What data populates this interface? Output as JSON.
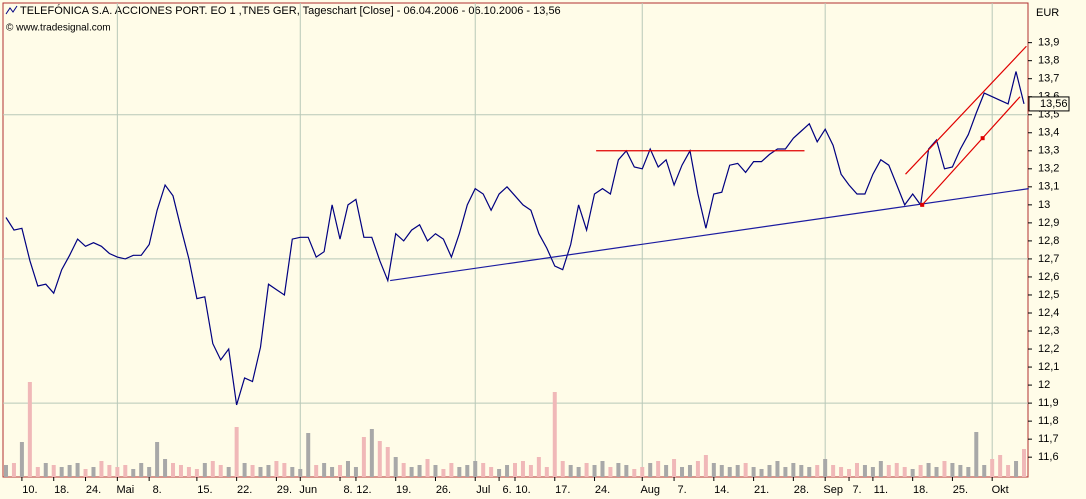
{
  "chart_data": {
    "type": "line",
    "title": "TELEFÓNICA S.A. ACCIONES PORT. EO 1 ,TNE5 GER, Tageschart [Close] - 06.04.2006 - 06.10.2006 - 13,56",
    "source": "© www.tradesignal.com",
    "y_unit": "EUR",
    "categories": [
      null,
      null,
      "10.",
      null,
      null,
      null,
      "18.",
      null,
      null,
      null,
      "24.",
      null,
      null,
      null,
      "Mai",
      null,
      null,
      null,
      "8.",
      null,
      null,
      null,
      null,
      null,
      "15.",
      null,
      null,
      null,
      null,
      "22.",
      null,
      null,
      null,
      null,
      "29.",
      null,
      null,
      "Jun",
      null,
      null,
      null,
      null,
      "8.",
      null,
      "12.",
      null,
      null,
      null,
      null,
      "19.",
      null,
      null,
      null,
      null,
      "26.",
      null,
      null,
      null,
      null,
      "Jul",
      null,
      null,
      "6.",
      null,
      "10.",
      null,
      null,
      null,
      null,
      "17.",
      null,
      null,
      null,
      null,
      "24.",
      null,
      null,
      null,
      null,
      null,
      "Aug",
      null,
      null,
      null,
      "7.",
      null,
      null,
      null,
      null,
      "14.",
      null,
      null,
      null,
      null,
      "21.",
      null,
      null,
      null,
      null,
      "28.",
      null,
      null,
      null,
      "Sep",
      null,
      null,
      "7.",
      null,
      null,
      "11.",
      null,
      null,
      null,
      null,
      "18.",
      null,
      null,
      null,
      null,
      "25.",
      null,
      null,
      null,
      null,
      "Okt",
      null,
      null,
      null,
      null
    ],
    "series": [
      {
        "name": "Close",
        "color": "#000080",
        "values": [
          12.93,
          12.86,
          12.87,
          12.69,
          12.55,
          12.56,
          12.51,
          12.64,
          12.72,
          12.81,
          12.77,
          12.79,
          12.77,
          12.73,
          12.71,
          12.7,
          12.72,
          12.72,
          12.78,
          12.97,
          13.11,
          13.05,
          12.87,
          12.7,
          12.48,
          12.49,
          12.23,
          12.14,
          12.2,
          11.89,
          12.04,
          12.02,
          12.21,
          12.56,
          12.53,
          12.5,
          12.81,
          12.82,
          12.82,
          12.71,
          12.74,
          13.0,
          12.81,
          13.0,
          13.03,
          12.82,
          12.82,
          12.69,
          12.58,
          12.84,
          12.8,
          12.86,
          12.89,
          12.8,
          12.84,
          12.81,
          12.71,
          12.84,
          13.0,
          13.09,
          13.06,
          12.97,
          13.06,
          13.1,
          13.05,
          13.0,
          12.97,
          12.84,
          12.76,
          12.66,
          12.64,
          12.78,
          13.0,
          12.86,
          13.06,
          13.09,
          13.06,
          13.25,
          13.3,
          13.21,
          13.2,
          13.31,
          13.21,
          13.25,
          13.11,
          13.22,
          13.3,
          13.06,
          12.87,
          13.06,
          13.07,
          13.22,
          13.23,
          13.18,
          13.24,
          13.24,
          13.28,
          13.31,
          13.31,
          13.37,
          13.41,
          13.45,
          13.35,
          13.42,
          13.33,
          13.17,
          13.11,
          13.06,
          13.06,
          13.17,
          13.25,
          13.22,
          13.11,
          13.0,
          13.06,
          13.0,
          13.31,
          13.36,
          13.2,
          13.21,
          13.31,
          13.39,
          13.51,
          13.62,
          13.6,
          13.58,
          13.56,
          13.74,
          13.56
        ]
      }
    ],
    "volume": {
      "colors": [
        "#a8a8a8",
        "#f0b8b8"
      ],
      "lim": [
        0,
        100
      ],
      "values": [
        12,
        14,
        35,
        95,
        10,
        14,
        12,
        10,
        12,
        14,
        8,
        10,
        16,
        12,
        10,
        12,
        8,
        14,
        10,
        35,
        18,
        14,
        12,
        10,
        8,
        14,
        16,
        12,
        10,
        50,
        14,
        12,
        10,
        12,
        16,
        14,
        10,
        8,
        44,
        12,
        14,
        10,
        12,
        16,
        10,
        40,
        48,
        36,
        30,
        20,
        14,
        10,
        12,
        18,
        12,
        8,
        14,
        10,
        12,
        16,
        14,
        10,
        8,
        12,
        14,
        16,
        12,
        20,
        10,
        85,
        16,
        12,
        10,
        14,
        12,
        16,
        10,
        14,
        12,
        8,
        10,
        14,
        16,
        12,
        18,
        10,
        12,
        16,
        22,
        14,
        12,
        10,
        12,
        14,
        10,
        8,
        12,
        16,
        10,
        14,
        12,
        10,
        12,
        18,
        12,
        10,
        8,
        14,
        12,
        10,
        16,
        12,
        14,
        10,
        8,
        12,
        14,
        10,
        16,
        14,
        12,
        10,
        45,
        12,
        18,
        22,
        12,
        16,
        28
      ]
    },
    "trendlines": [
      {
        "color": "#1c1ca0",
        "points": [
          [
            48.3,
            12.58
          ],
          [
            128.6,
            13.09
          ]
        ]
      },
      {
        "color": "#e00000",
        "points": [
          [
            74.2,
            13.3
          ],
          [
            100.4,
            13.3
          ]
        ]
      },
      {
        "color": "#e00000",
        "points": [
          [
            113.1,
            13.17
          ],
          [
            128.3,
            13.88
          ]
        ]
      },
      {
        "color": "#e00000",
        "points": [
          [
            115.2,
            13.0
          ],
          [
            127.5,
            13.6
          ]
        ]
      }
    ],
    "markers": [
      {
        "color": "#e00000",
        "point": [
          115.2,
          13.0
        ]
      },
      {
        "color": "#e00000",
        "point": [
          122.8,
          13.37
        ]
      }
    ],
    "ylim": [
      11.49,
      14.12
    ],
    "yticks": [
      {
        "value": 11.6,
        "label": "11,6"
      },
      {
        "value": 11.7,
        "label": "11,7"
      },
      {
        "value": 11.8,
        "label": "11,8"
      },
      {
        "value": 11.9,
        "label": "11,9"
      },
      {
        "value": 12,
        "label": "12"
      },
      {
        "value": 12.1,
        "label": "12,1"
      },
      {
        "value": 12.2,
        "label": "12,2"
      },
      {
        "value": 12.3,
        "label": "12,3"
      },
      {
        "value": 12.4,
        "label": "12,4"
      },
      {
        "value": 12.5,
        "label": "12,5"
      },
      {
        "value": 12.6,
        "label": "12,6"
      },
      {
        "value": 12.7,
        "label": "12,7"
      },
      {
        "value": 12.8,
        "label": "12,8"
      },
      {
        "value": 12.9,
        "label": "12,9"
      },
      {
        "value": 13,
        "label": "13"
      },
      {
        "value": 13.1,
        "label": "13,1"
      },
      {
        "value": 13.2,
        "label": "13,2"
      },
      {
        "value": 13.3,
        "label": "13,3"
      },
      {
        "value": 13.4,
        "label": "13,4"
      },
      {
        "value": 13.5,
        "label": "13,5"
      },
      {
        "value": 13.6,
        "label": "13,6"
      },
      {
        "value": 13.7,
        "label": "13,7"
      },
      {
        "value": 13.8,
        "label": "13,8"
      },
      {
        "value": 13.9,
        "label": "13,9"
      }
    ],
    "grid_y": [
      13.5,
      12.7,
      11.9
    ],
    "last_price": {
      "value": 13.56,
      "label": "13,56"
    }
  }
}
